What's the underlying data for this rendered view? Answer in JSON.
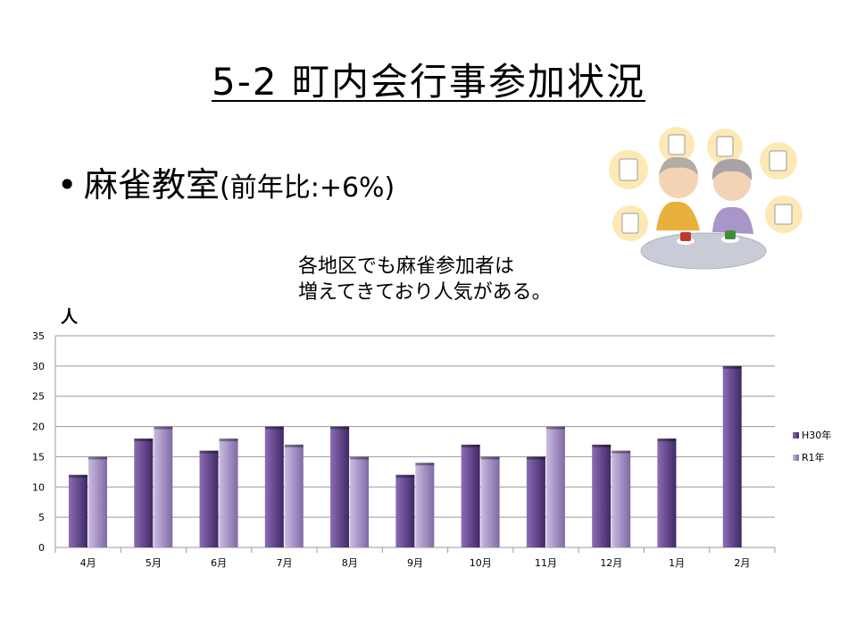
{
  "slide": {
    "title": "5-2 町内会行事参加状況",
    "bullet_main": "麻雀教室",
    "bullet_sub": "(前年比:+6%)",
    "note_line1": "各地区でも麻雀参加者は",
    "note_line2": "増えてきており人気がある。",
    "unit_label": "人"
  },
  "colors": {
    "series1": "#6a4c93",
    "series2": "#a996c8",
    "grid": "#9a9a9a"
  },
  "chart_data": {
    "type": "bar",
    "title": "",
    "xlabel": "",
    "ylabel": "人",
    "ylim": [
      0,
      35
    ],
    "yticks": [
      0,
      5,
      10,
      15,
      20,
      25,
      30,
      35
    ],
    "grid": true,
    "legend_position": "right",
    "categories": [
      "4月",
      "5月",
      "6月",
      "7月",
      "8月",
      "9月",
      "10月",
      "11月",
      "12月",
      "1月",
      "2月"
    ],
    "series": [
      {
        "name": "H30年",
        "values": [
          12,
          18,
          16,
          20,
          20,
          12,
          17,
          15,
          17,
          18,
          30
        ]
      },
      {
        "name": "R1年",
        "values": [
          15,
          20,
          18,
          17,
          15,
          14,
          15,
          20,
          16,
          null,
          null
        ]
      }
    ]
  }
}
